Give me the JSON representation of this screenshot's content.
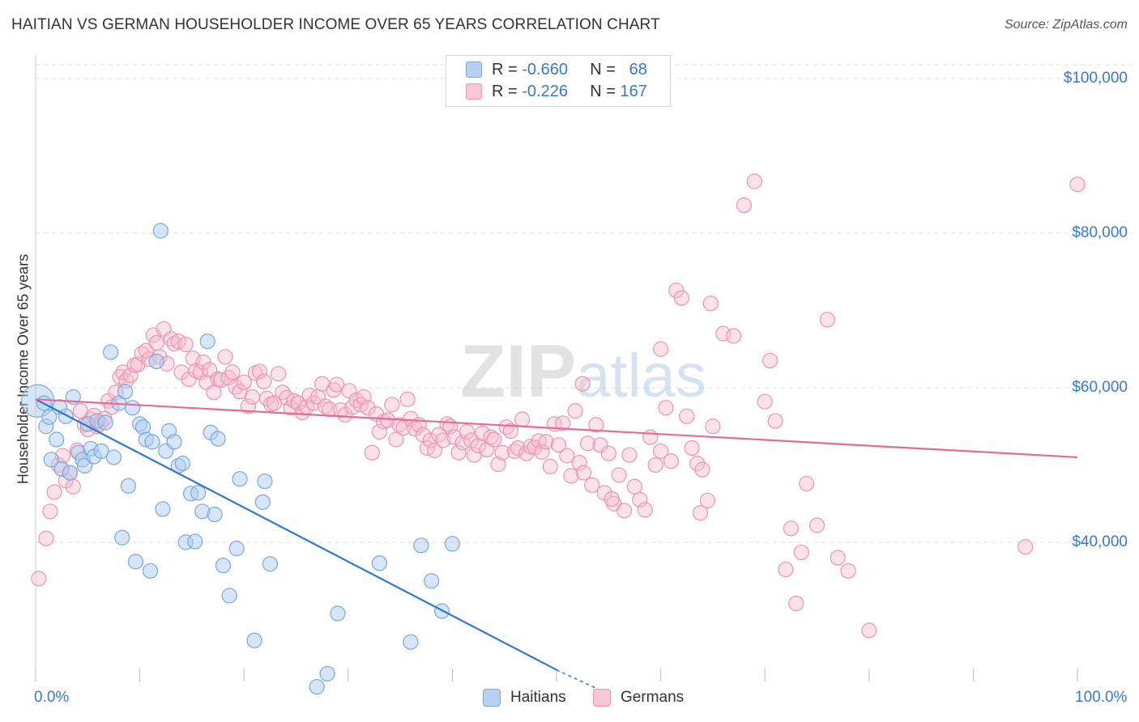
{
  "title": "HAITIAN VS GERMAN HOUSEHOLDER INCOME OVER 65 YEARS CORRELATION CHART",
  "source": "Source: ZipAtlas.com",
  "watermark": "ZIPatlas",
  "legend": {
    "rows": [
      {
        "r_label": "R =",
        "r_value": "-0.660",
        "n_label": "N =",
        "n_value": "68"
      },
      {
        "r_label": "R =",
        "r_value": "-0.226",
        "n_label": "N =",
        "n_value": "167"
      }
    ]
  },
  "colors": {
    "haitians_fill": "#aecbf0",
    "haitians_stroke": "#7aa7dd",
    "haitians_line": "#2f78d0",
    "germans_fill": "#f6bccc",
    "germans_stroke": "#eb94ae",
    "germans_line": "#e36d92",
    "tick_text": "#3a78c8",
    "grid": "#dddddd"
  },
  "chart_data": {
    "type": "scatter",
    "title": "HAITIAN VS GERMAN HOUSEHOLDER INCOME OVER 65 YEARS CORRELATION CHART",
    "xlabel": "",
    "ylabel": "Householder Income Over 65 years",
    "x_tick_labels": [
      "0.0%",
      "100.0%"
    ],
    "y_tick_labels": [
      "$100,000",
      "$80,000",
      "$60,000",
      "$40,000"
    ],
    "y_ticks": [
      100000,
      80000,
      60000,
      40000
    ],
    "xlim": [
      0,
      100
    ],
    "ylim": [
      20000,
      103000
    ],
    "grid": true,
    "legend_position": "bottom",
    "series": [
      {
        "name": "Haitians",
        "r": -0.66,
        "n": 68,
        "trend": {
          "x": [
            0,
            50
          ],
          "y": [
            58500,
            23500
          ],
          "dashed_to": [
            54,
            21000
          ]
        },
        "points": [
          [
            0.2,
            58.3
          ],
          [
            0.8,
            58.0
          ],
          [
            1.0,
            55.0
          ],
          [
            1.3,
            56.2
          ],
          [
            1.5,
            50.7
          ],
          [
            2.0,
            53.3
          ],
          [
            2.3,
            57.5
          ],
          [
            2.5,
            49.5
          ],
          [
            2.9,
            56.3
          ],
          [
            3.3,
            49.0
          ],
          [
            3.6,
            58.8
          ],
          [
            4.1,
            51.6
          ],
          [
            4.5,
            50.7
          ],
          [
            4.7,
            49.9
          ],
          [
            5.0,
            55.3
          ],
          [
            5.3,
            52.1
          ],
          [
            5.6,
            51.1
          ],
          [
            5.9,
            55.7
          ],
          [
            6.3,
            51.8
          ],
          [
            6.7,
            55.5
          ],
          [
            7.2,
            64.6
          ],
          [
            7.5,
            51.0
          ],
          [
            8.0,
            58.0
          ],
          [
            8.3,
            40.6
          ],
          [
            8.6,
            59.5
          ],
          [
            8.9,
            47.3
          ],
          [
            9.3,
            57.4
          ],
          [
            9.6,
            37.5
          ],
          [
            10.0,
            55.3
          ],
          [
            10.3,
            54.9
          ],
          [
            10.6,
            53.3
          ],
          [
            11.0,
            36.3
          ],
          [
            11.2,
            53.0
          ],
          [
            11.6,
            63.4
          ],
          [
            12.0,
            80.3
          ],
          [
            12.2,
            44.3
          ],
          [
            12.5,
            51.8
          ],
          [
            12.8,
            54.4
          ],
          [
            13.3,
            53.0
          ],
          [
            13.7,
            49.9
          ],
          [
            14.1,
            50.2
          ],
          [
            14.4,
            40.0
          ],
          [
            14.9,
            46.3
          ],
          [
            15.3,
            40.1
          ],
          [
            15.6,
            46.4
          ],
          [
            16.0,
            44.0
          ],
          [
            16.5,
            66.0
          ],
          [
            16.8,
            54.2
          ],
          [
            17.2,
            43.6
          ],
          [
            17.5,
            53.4
          ],
          [
            18.0,
            37.0
          ],
          [
            18.6,
            33.1
          ],
          [
            19.3,
            39.2
          ],
          [
            19.6,
            48.2
          ],
          [
            21.0,
            27.3
          ],
          [
            21.8,
            45.2
          ],
          [
            22.0,
            47.9
          ],
          [
            22.5,
            37.2
          ],
          [
            27.0,
            21.3
          ],
          [
            28.0,
            23.0
          ],
          [
            29.0,
            30.8
          ],
          [
            33.0,
            37.3
          ],
          [
            36.0,
            27.1
          ],
          [
            37.0,
            39.6
          ],
          [
            38.0,
            35.0
          ],
          [
            39.0,
            31.1
          ],
          [
            40.0,
            39.8
          ]
        ]
      },
      {
        "name": "Germans",
        "r": -0.226,
        "n": 167,
        "trend": {
          "x": [
            0,
            100
          ],
          "y": [
            58500,
            51000
          ]
        },
        "points": [
          [
            0.3,
            35.3
          ],
          [
            1.0,
            40.5
          ],
          [
            1.4,
            44.0
          ],
          [
            1.8,
            46.5
          ],
          [
            2.2,
            50.0
          ],
          [
            2.6,
            51.2
          ],
          [
            2.9,
            48.0
          ],
          [
            3.3,
            49.0
          ],
          [
            3.6,
            47.2
          ],
          [
            4.0,
            51.9
          ],
          [
            4.3,
            57.0
          ],
          [
            4.7,
            55.2
          ],
          [
            5.0,
            54.6
          ],
          [
            5.3,
            55.9
          ],
          [
            5.6,
            56.4
          ],
          [
            5.9,
            55.0
          ],
          [
            6.2,
            55.4
          ],
          [
            6.6,
            56.0
          ],
          [
            7.0,
            58.3
          ],
          [
            7.3,
            57.5
          ],
          [
            7.7,
            59.4
          ],
          [
            8.1,
            61.4
          ],
          [
            8.4,
            62.0
          ],
          [
            8.7,
            60.9
          ],
          [
            9.1,
            61.6
          ],
          [
            9.5,
            62.9
          ],
          [
            9.8,
            63.0
          ],
          [
            10.2,
            64.4
          ],
          [
            10.6,
            64.8
          ],
          [
            10.9,
            63.7
          ],
          [
            11.3,
            66.8
          ],
          [
            11.6,
            65.8
          ],
          [
            11.9,
            64.0
          ],
          [
            12.3,
            67.6
          ],
          [
            12.6,
            63.1
          ],
          [
            13.0,
            66.3
          ],
          [
            13.3,
            65.7
          ],
          [
            13.7,
            66.0
          ],
          [
            14.0,
            62.0
          ],
          [
            14.4,
            65.6
          ],
          [
            14.7,
            61.1
          ],
          [
            15.1,
            63.8
          ],
          [
            15.4,
            62.2
          ],
          [
            15.8,
            62.0
          ],
          [
            16.1,
            63.3
          ],
          [
            16.4,
            60.7
          ],
          [
            16.7,
            62.3
          ],
          [
            17.1,
            59.4
          ],
          [
            17.5,
            61.1
          ],
          [
            17.8,
            61.0
          ],
          [
            18.2,
            64.0
          ],
          [
            18.5,
            61.3
          ],
          [
            18.9,
            62.0
          ],
          [
            19.2,
            60.1
          ],
          [
            19.6,
            59.5
          ],
          [
            20.0,
            60.7
          ],
          [
            20.4,
            57.6
          ],
          [
            20.8,
            58.8
          ],
          [
            21.1,
            61.9
          ],
          [
            21.5,
            62.1
          ],
          [
            21.9,
            60.8
          ],
          [
            22.2,
            58.6
          ],
          [
            22.6,
            57.9
          ],
          [
            22.9,
            58.0
          ],
          [
            23.3,
            61.8
          ],
          [
            23.7,
            59.4
          ],
          [
            24.1,
            58.7
          ],
          [
            24.5,
            57.4
          ],
          [
            24.8,
            58.3
          ],
          [
            25.2,
            58.0
          ],
          [
            25.6,
            56.8
          ],
          [
            26.0,
            57.5
          ],
          [
            26.3,
            59.0
          ],
          [
            26.7,
            58.0
          ],
          [
            27.1,
            58.8
          ],
          [
            27.5,
            60.5
          ],
          [
            27.8,
            57.6
          ],
          [
            28.2,
            57.2
          ],
          [
            28.6,
            59.7
          ],
          [
            28.9,
            60.4
          ],
          [
            29.3,
            57.1
          ],
          [
            29.7,
            56.5
          ],
          [
            30.1,
            59.6
          ],
          [
            30.4,
            57.5
          ],
          [
            30.8,
            58.4
          ],
          [
            31.2,
            57.8
          ],
          [
            31.5,
            58.8
          ],
          [
            31.9,
            57.4
          ],
          [
            32.3,
            51.6
          ],
          [
            32.7,
            56.6
          ],
          [
            33.0,
            54.3
          ],
          [
            33.4,
            55.6
          ],
          [
            33.8,
            55.8
          ],
          [
            34.2,
            57.8
          ],
          [
            34.6,
            53.3
          ],
          [
            34.9,
            55.2
          ],
          [
            35.3,
            54.8
          ],
          [
            35.7,
            58.5
          ],
          [
            36.0,
            56.0
          ],
          [
            36.4,
            54.7
          ],
          [
            36.8,
            55.2
          ],
          [
            37.2,
            53.9
          ],
          [
            37.6,
            52.2
          ],
          [
            37.9,
            53.2
          ],
          [
            38.3,
            51.9
          ],
          [
            38.7,
            53.9
          ],
          [
            39.1,
            53.2
          ],
          [
            39.5,
            55.3
          ],
          [
            39.8,
            55.0
          ],
          [
            40.2,
            53.6
          ],
          [
            40.6,
            51.6
          ],
          [
            41.0,
            52.9
          ],
          [
            41.4,
            54.3
          ],
          [
            41.8,
            53.2
          ],
          [
            42.1,
            51.3
          ],
          [
            42.5,
            52.5
          ],
          [
            42.9,
            54.1
          ],
          [
            43.3,
            52.0
          ],
          [
            43.7,
            53.6
          ],
          [
            44.0,
            53.3
          ],
          [
            44.4,
            50.1
          ],
          [
            44.8,
            51.6
          ],
          [
            45.2,
            54.9
          ],
          [
            45.6,
            54.4
          ],
          [
            46.0,
            51.8
          ],
          [
            46.3,
            52.2
          ],
          [
            46.7,
            55.9
          ],
          [
            47.1,
            51.5
          ],
          [
            47.5,
            52.4
          ],
          [
            47.9,
            52.3
          ],
          [
            48.3,
            53.1
          ],
          [
            48.6,
            51.7
          ],
          [
            49.0,
            53.0
          ],
          [
            49.4,
            49.8
          ],
          [
            49.8,
            55.3
          ],
          [
            50.2,
            52.6
          ],
          [
            50.6,
            55.4
          ],
          [
            51.0,
            51.2
          ],
          [
            51.4,
            48.6
          ],
          [
            51.8,
            57.0
          ],
          [
            52.2,
            50.3
          ],
          [
            52.6,
            49.0
          ],
          [
            53.0,
            52.8
          ],
          [
            53.4,
            47.4
          ],
          [
            53.8,
            55.2
          ],
          [
            54.2,
            52.6
          ],
          [
            54.6,
            46.4
          ],
          [
            55.0,
            51.5
          ],
          [
            55.5,
            45.0
          ],
          [
            56.0,
            48.7
          ],
          [
            56.5,
            44.1
          ],
          [
            57.0,
            51.3
          ],
          [
            57.5,
            47.2
          ],
          [
            58.0,
            45.5
          ],
          [
            58.5,
            44.2
          ],
          [
            59.0,
            53.6
          ],
          [
            59.5,
            50.0
          ],
          [
            60.0,
            51.8
          ],
          [
            60.5,
            57.4
          ],
          [
            61.0,
            50.5
          ],
          [
            61.5,
            72.6
          ],
          [
            62.0,
            71.6
          ],
          [
            62.5,
            56.3
          ],
          [
            63.0,
            52.2
          ],
          [
            63.5,
            50.2
          ],
          [
            64.0,
            49.4
          ],
          [
            64.5,
            45.4
          ],
          [
            65.0,
            55.0
          ],
          [
            66.0,
            67.0
          ],
          [
            67.0,
            66.7
          ],
          [
            68.0,
            83.6
          ],
          [
            69.0,
            86.7
          ],
          [
            70.0,
            58.2
          ],
          [
            71.0,
            55.7
          ],
          [
            72.0,
            36.5
          ],
          [
            73.0,
            32.1
          ],
          [
            73.5,
            38.7
          ],
          [
            74.0,
            47.6
          ],
          [
            75.0,
            42.2
          ],
          [
            76.0,
            68.8
          ],
          [
            77.0,
            38.0
          ],
          [
            78.0,
            36.3
          ],
          [
            80.0,
            28.6
          ],
          [
            95.0,
            39.4
          ],
          [
            100.0,
            86.3
          ],
          [
            60.0,
            65.0
          ],
          [
            64.8,
            70.9
          ],
          [
            70.5,
            63.5
          ],
          [
            72.5,
            41.8
          ],
          [
            63.8,
            43.8
          ],
          [
            55.3,
            45.6
          ],
          [
            52.5,
            60.5
          ]
        ]
      }
    ]
  }
}
